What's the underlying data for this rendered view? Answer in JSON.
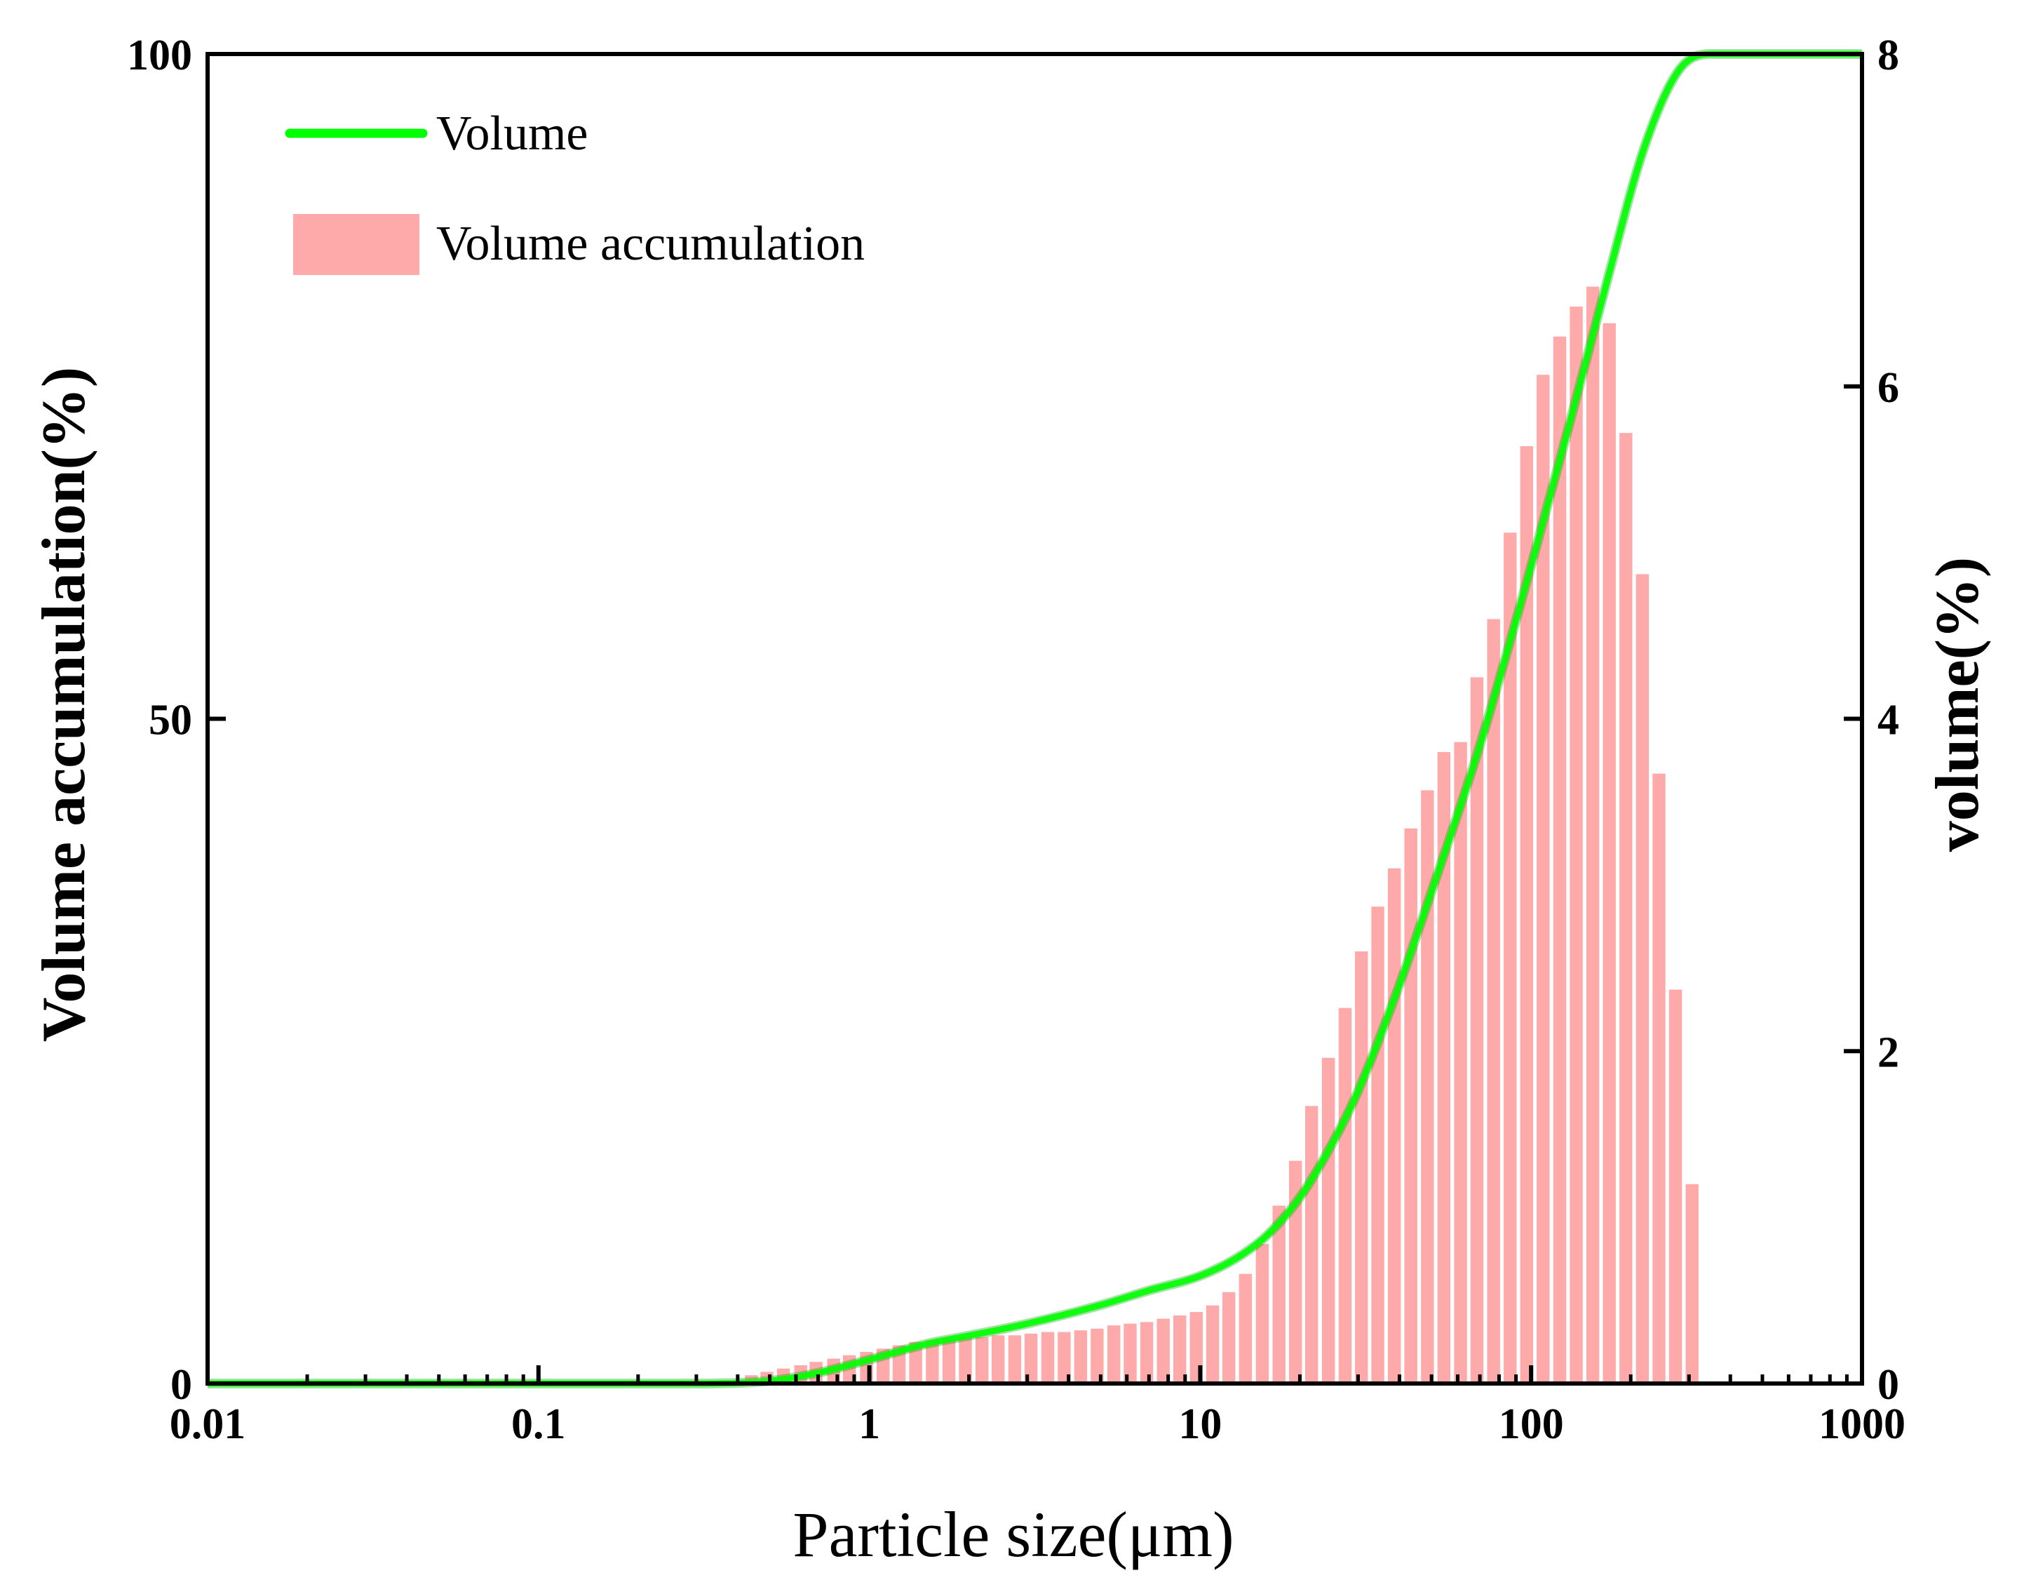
{
  "chart_data": {
    "type": "bar+line",
    "xlabel": "Particle size(μm)",
    "ylabel_left": "Volume accumulation(%)",
    "ylabel_right": "volume(%)",
    "x_scale": "log",
    "xlim": [
      0.01,
      1000
    ],
    "ylim_left": [
      0,
      100
    ],
    "ylim_right": [
      0,
      8
    ],
    "x_ticks": [
      {
        "value": 0.01,
        "label": "0.01"
      },
      {
        "value": 0.1,
        "label": "0.1"
      },
      {
        "value": 1,
        "label": "1"
      },
      {
        "value": 10,
        "label": "10"
      },
      {
        "value": 100,
        "label": "100"
      },
      {
        "value": 1000,
        "label": "1000"
      }
    ],
    "y_left_ticks": [
      {
        "value": 0,
        "label": "0"
      },
      {
        "value": 50,
        "label": "50"
      },
      {
        "value": 100,
        "label": "100"
      }
    ],
    "y_right_ticks": [
      {
        "value": 0,
        "label": "0"
      },
      {
        "value": 2,
        "label": "2"
      },
      {
        "value": 4,
        "label": "4"
      },
      {
        "value": 6,
        "label": "6"
      },
      {
        "value": 8,
        "label": "8"
      }
    ],
    "legend": {
      "position": "top-left",
      "entries": [
        {
          "label": "Volume",
          "kind": "line",
          "color": "#00ff00"
        },
        {
          "label": "Volume accumulation",
          "kind": "bar",
          "color": "#ffaaaa"
        }
      ]
    },
    "bars": {
      "name": "Volume accumulation",
      "axis": "right",
      "color": "#ffaaaa",
      "x": [
        0.44,
        0.49,
        0.55,
        0.62,
        0.69,
        0.78,
        0.87,
        0.98,
        1.1,
        1.23,
        1.38,
        1.55,
        1.74,
        1.95,
        2.19,
        2.45,
        2.75,
        3.08,
        3.46,
        3.88,
        4.35,
        4.88,
        5.48,
        6.14,
        6.89,
        7.73,
        8.67,
        9.73,
        10.9,
        12.2,
        13.7,
        15.4,
        17.3,
        19.4,
        21.7,
        24.4,
        27.4,
        30.7,
        34.4,
        38.6,
        43.3,
        48.6,
        54.5,
        61.2,
        68.6,
        77.0,
        86.4,
        96.9,
        108.7,
        122,
        136.9,
        153.6,
        172.3,
        193.3,
        216.9,
        243.4,
        273.1,
        306.4,
        343.8
      ],
      "values": [
        0.05,
        0.07,
        0.09,
        0.11,
        0.13,
        0.15,
        0.17,
        0.19,
        0.21,
        0.23,
        0.25,
        0.26,
        0.27,
        0.28,
        0.28,
        0.29,
        0.29,
        0.3,
        0.31,
        0.31,
        0.32,
        0.33,
        0.35,
        0.36,
        0.37,
        0.39,
        0.41,
        0.43,
        0.47,
        0.55,
        0.66,
        0.84,
        1.07,
        1.34,
        1.67,
        1.96,
        2.26,
        2.6,
        2.87,
        3.1,
        3.34,
        3.57,
        3.8,
        3.86,
        4.25,
        4.6,
        5.12,
        5.64,
        6.07,
        6.3,
        6.48,
        6.6,
        6.38,
        5.72,
        4.87,
        3.67,
        2.37,
        1.2,
        0.0
      ]
    },
    "line": {
      "name": "Volume",
      "axis": "left",
      "color": "#00ff00",
      "x": [
        0.01,
        0.1,
        0.3,
        0.5,
        0.7,
        1.0,
        1.5,
        2,
        3,
        5,
        7,
        10,
        13,
        16,
        20,
        25,
        30,
        40,
        50,
        70,
        100,
        130,
        170,
        220,
        280,
        350,
        500,
        1000
      ],
      "values": [
        0,
        0,
        0,
        0.2,
        0.8,
        1.8,
        3.0,
        3.6,
        4.5,
        5.9,
        7.0,
        8.1,
        9.5,
        11.2,
        14.0,
        18.0,
        22.0,
        30.0,
        37.0,
        48.0,
        61.5,
        72.0,
        83.0,
        93.0,
        98.8,
        100,
        100,
        100
      ]
    }
  }
}
